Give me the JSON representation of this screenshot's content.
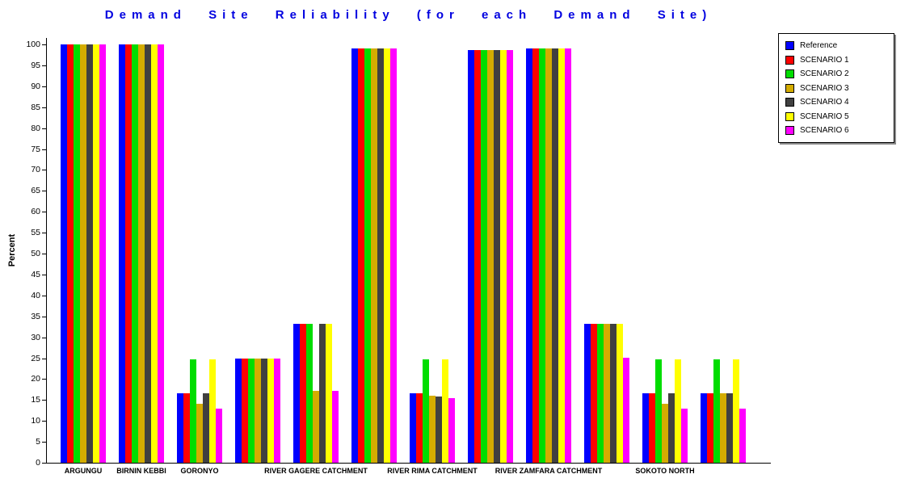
{
  "chart_data": {
    "type": "bar",
    "title": "Demand Site Reliability (for each Demand Site)",
    "title_color": "#0000E0",
    "xlabel": "",
    "ylabel": "Percent",
    "ylim": [
      0,
      100
    ],
    "yticks": [
      0,
      5,
      10,
      15,
      20,
      25,
      30,
      35,
      40,
      45,
      50,
      55,
      60,
      65,
      70,
      75,
      80,
      85,
      90,
      95,
      100
    ],
    "grid": false,
    "legend_position": "top-right",
    "categories": [
      "ARGUNGU",
      "BIRNIN KEBBI",
      "GORONYO",
      "",
      "RIVER GAGERE CATCHMENT",
      "",
      "RIVER RIMA CATCHMENT",
      "",
      "RIVER ZAMFARA CATCHMENT",
      "",
      "SOKOTO NORTH",
      ""
    ],
    "series": [
      {
        "name": "Reference",
        "color": "#0000FF",
        "values": [
          100,
          100,
          16.6,
          25,
          33.3,
          99,
          16.6,
          98.6,
          99,
          33.3,
          16.6,
          16.6
        ]
      },
      {
        "name": "SCENARIO 1",
        "color": "#FF0000",
        "values": [
          100,
          100,
          16.6,
          25,
          33.3,
          99,
          16.6,
          98.6,
          99,
          33.3,
          16.6,
          16.6
        ]
      },
      {
        "name": "SCENARIO 2",
        "color": "#00DD00",
        "values": [
          100,
          100,
          24.7,
          25,
          33.3,
          99,
          24.7,
          98.6,
          99,
          33.3,
          24.7,
          24.7
        ]
      },
      {
        "name": "SCENARIO 3",
        "color": "#D4AC00",
        "values": [
          100,
          100,
          14.0,
          25,
          17.1,
          99,
          16.0,
          98.6,
          99,
          33.3,
          14.0,
          16.6
        ]
      },
      {
        "name": "SCENARIO 4",
        "color": "#404040",
        "values": [
          100,
          100,
          16.6,
          25,
          33.3,
          99,
          15.8,
          98.6,
          99,
          33.3,
          16.6,
          16.6
        ]
      },
      {
        "name": "SCENARIO 5",
        "color": "#FFFF00",
        "values": [
          100,
          100,
          24.7,
          25,
          33.3,
          99,
          24.7,
          98.6,
          99,
          33.3,
          24.7,
          24.7
        ]
      },
      {
        "name": "SCENARIO 6",
        "color": "#FF00FF",
        "values": [
          100,
          100,
          12.9,
          25,
          17.1,
          99,
          15.4,
          98.6,
          99,
          25.1,
          12.9,
          12.9
        ]
      }
    ]
  }
}
